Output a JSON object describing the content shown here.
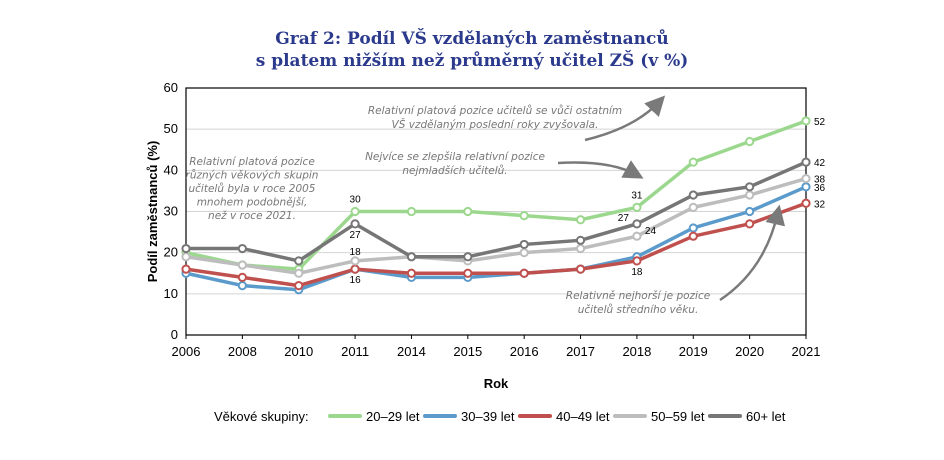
{
  "title_line1": "Graf 2: Podíl VŠ vzdělaných zaměstnanců",
  "title_line2": "s platem nižším než průměrný učitel ZŠ (v %)",
  "chart_data": {
    "type": "line",
    "x": [
      "2006",
      "2008",
      "2010",
      "2011",
      "2014",
      "2015",
      "2016",
      "2017",
      "2018",
      "2019",
      "2020",
      "2021"
    ],
    "series": [
      {
        "name": "20–29 let",
        "color": "#9bd88e",
        "values": [
          20,
          17,
          16,
          30,
          30,
          30,
          29,
          28,
          31,
          42,
          47,
          52
        ]
      },
      {
        "name": "30–39 let",
        "color": "#5b9bcb",
        "values": [
          15,
          12,
          11,
          16,
          14,
          14,
          15,
          16,
          19,
          26,
          30,
          36
        ]
      },
      {
        "name": "40–49 let",
        "color": "#c0504d",
        "values": [
          16,
          14,
          12,
          16,
          15,
          15,
          15,
          16,
          18,
          24,
          27,
          32
        ]
      },
      {
        "name": "50–59 let",
        "color": "#bdbdbd",
        "values": [
          19,
          17,
          15,
          18,
          19,
          18,
          20,
          21,
          24,
          31,
          34,
          38
        ]
      },
      {
        "name": "60+ let",
        "color": "#767676",
        "values": [
          21,
          21,
          18,
          27,
          19,
          19,
          22,
          23,
          27,
          34,
          36,
          42
        ]
      }
    ],
    "xlabel": "Rok",
    "ylabel": "Podíl zaměstnanců (%)",
    "ylim": [
      0,
      60
    ],
    "yticks": [
      0,
      10,
      20,
      30,
      40,
      50,
      60
    ],
    "grid": "horizontal",
    "legend_title": "Věkové skupiny:",
    "legend_position": "bottom",
    "data_labels": [
      {
        "series": 0,
        "index": 3,
        "text": "30"
      },
      {
        "series": 4,
        "index": 3,
        "text": "27"
      },
      {
        "series": 3,
        "index": 3,
        "text": "18"
      },
      {
        "series": 1,
        "index": 3,
        "text": "16"
      },
      {
        "series": 0,
        "index": 8,
        "text": "31"
      },
      {
        "series": 4,
        "index": 8,
        "text": "27"
      },
      {
        "series": 3,
        "index": 8,
        "text": "24"
      },
      {
        "series": 2,
        "index": 8,
        "text": "18"
      },
      {
        "series": 0,
        "index": 11,
        "text": "52"
      },
      {
        "series": 4,
        "index": 11,
        "text": "42"
      },
      {
        "series": 3,
        "index": 11,
        "text": "38"
      },
      {
        "series": 1,
        "index": 11,
        "text": "36"
      },
      {
        "series": 2,
        "index": 11,
        "text": "32"
      }
    ],
    "annotations": [
      {
        "lines": [
          "Relativní platová pozice",
          "různých věkových skupin",
          "učitelů byla v roce 2005",
          "mnohem podobnější,",
          "než v roce 2021."
        ]
      },
      {
        "lines": [
          "Relativní platová pozice učitelů se vůči ostatním",
          "VŠ vzdělaným poslední roky zvyšovala."
        ]
      },
      {
        "lines": [
          "Nejvíce se zlepšila relativní pozice",
          "nejmladších učitelů."
        ]
      },
      {
        "lines": [
          "Relativně nejhorší je pozice",
          "učitelů středního věku."
        ]
      }
    ]
  }
}
